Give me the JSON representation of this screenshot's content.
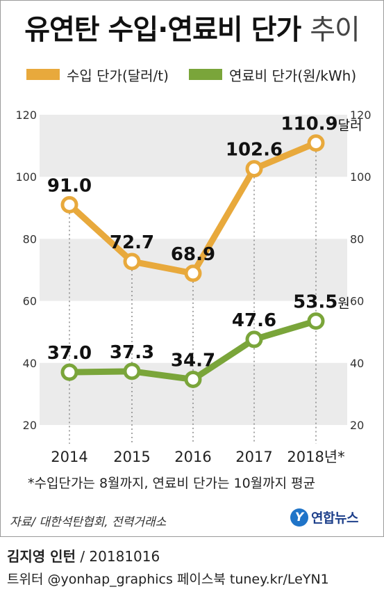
{
  "title": {
    "bold": "유연탄 수입·연료비 단가",
    "light": "추이"
  },
  "colors": {
    "import": "#e8a93c",
    "fuel": "#7aa53a",
    "band": "#ebebeb"
  },
  "chart_data": {
    "type": "line",
    "categories": [
      "2014",
      "2015",
      "2016",
      "2017",
      "2018년*"
    ],
    "ylim": [
      20,
      120
    ],
    "yticks": [
      20,
      40,
      60,
      80,
      100,
      120
    ],
    "series": [
      {
        "name": "수입 단가(달러/t)",
        "values": [
          91.0,
          72.7,
          68.9,
          102.6,
          110.9
        ],
        "labels": [
          "91.0",
          "72.7",
          "68.9",
          "102.6",
          "110.9"
        ],
        "last_unit": "달러"
      },
      {
        "name": "연료비 단가(원/kWh)",
        "values": [
          37.0,
          37.3,
          34.7,
          47.6,
          53.5
        ],
        "labels": [
          "37.0",
          "37.3",
          "34.7",
          "47.6",
          "53.5"
        ],
        "last_unit": "원"
      }
    ],
    "grid": "alternating horizontal bands"
  },
  "footnote": "*수입단가는 8월까지, 연료비 단가는 10월까지 평균",
  "source": "자료/ 대한석탄협회, 전력거래소",
  "logo": {
    "mark": "Y",
    "text": "연합뉴스"
  },
  "credit": {
    "author": "김지영 인턴",
    "sep_date": " / 20181016"
  },
  "social": "트위터 @yonhap_graphics  페이스북 tuney.kr/LeYN1"
}
